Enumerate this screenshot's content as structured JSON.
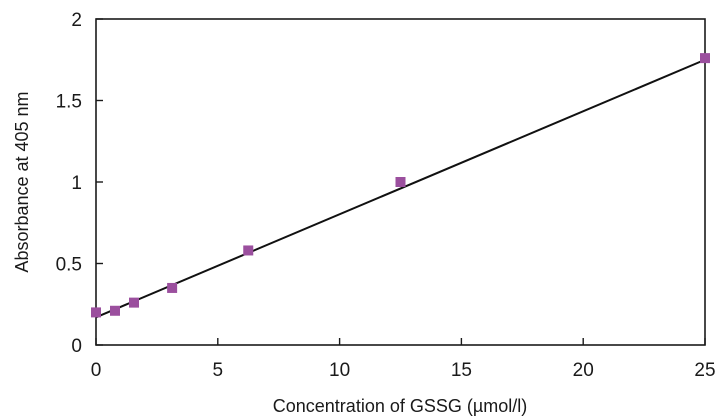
{
  "chart_data": {
    "type": "scatter",
    "title": "",
    "xlabel": "Concentration of GSSG (µmol/l)",
    "ylabel": "Absorbance at 405 nm",
    "xlim": [
      0,
      25
    ],
    "ylim": [
      0,
      2
    ],
    "xticks": [
      "0",
      "5",
      "10",
      "15",
      "20",
      "25"
    ],
    "yticks": [
      "0",
      "0.5",
      "1",
      "1.5",
      "2"
    ],
    "grid": false,
    "legend": "none",
    "series": [
      {
        "marker": "square",
        "color": "#9b4f9e",
        "points": [
          {
            "x": 0,
            "y": 0.2
          },
          {
            "x": 0.78,
            "y": 0.21
          },
          {
            "x": 1.56,
            "y": 0.26
          },
          {
            "x": 3.125,
            "y": 0.35
          },
          {
            "x": 6.25,
            "y": 0.58
          },
          {
            "x": 12.5,
            "y": 1.0
          },
          {
            "x": 25,
            "y": 1.76
          }
        ]
      }
    ],
    "trendline": {
      "type": "linear",
      "color": "#111111",
      "x": [
        0,
        25
      ],
      "y": [
        0.17,
        1.75
      ]
    }
  }
}
